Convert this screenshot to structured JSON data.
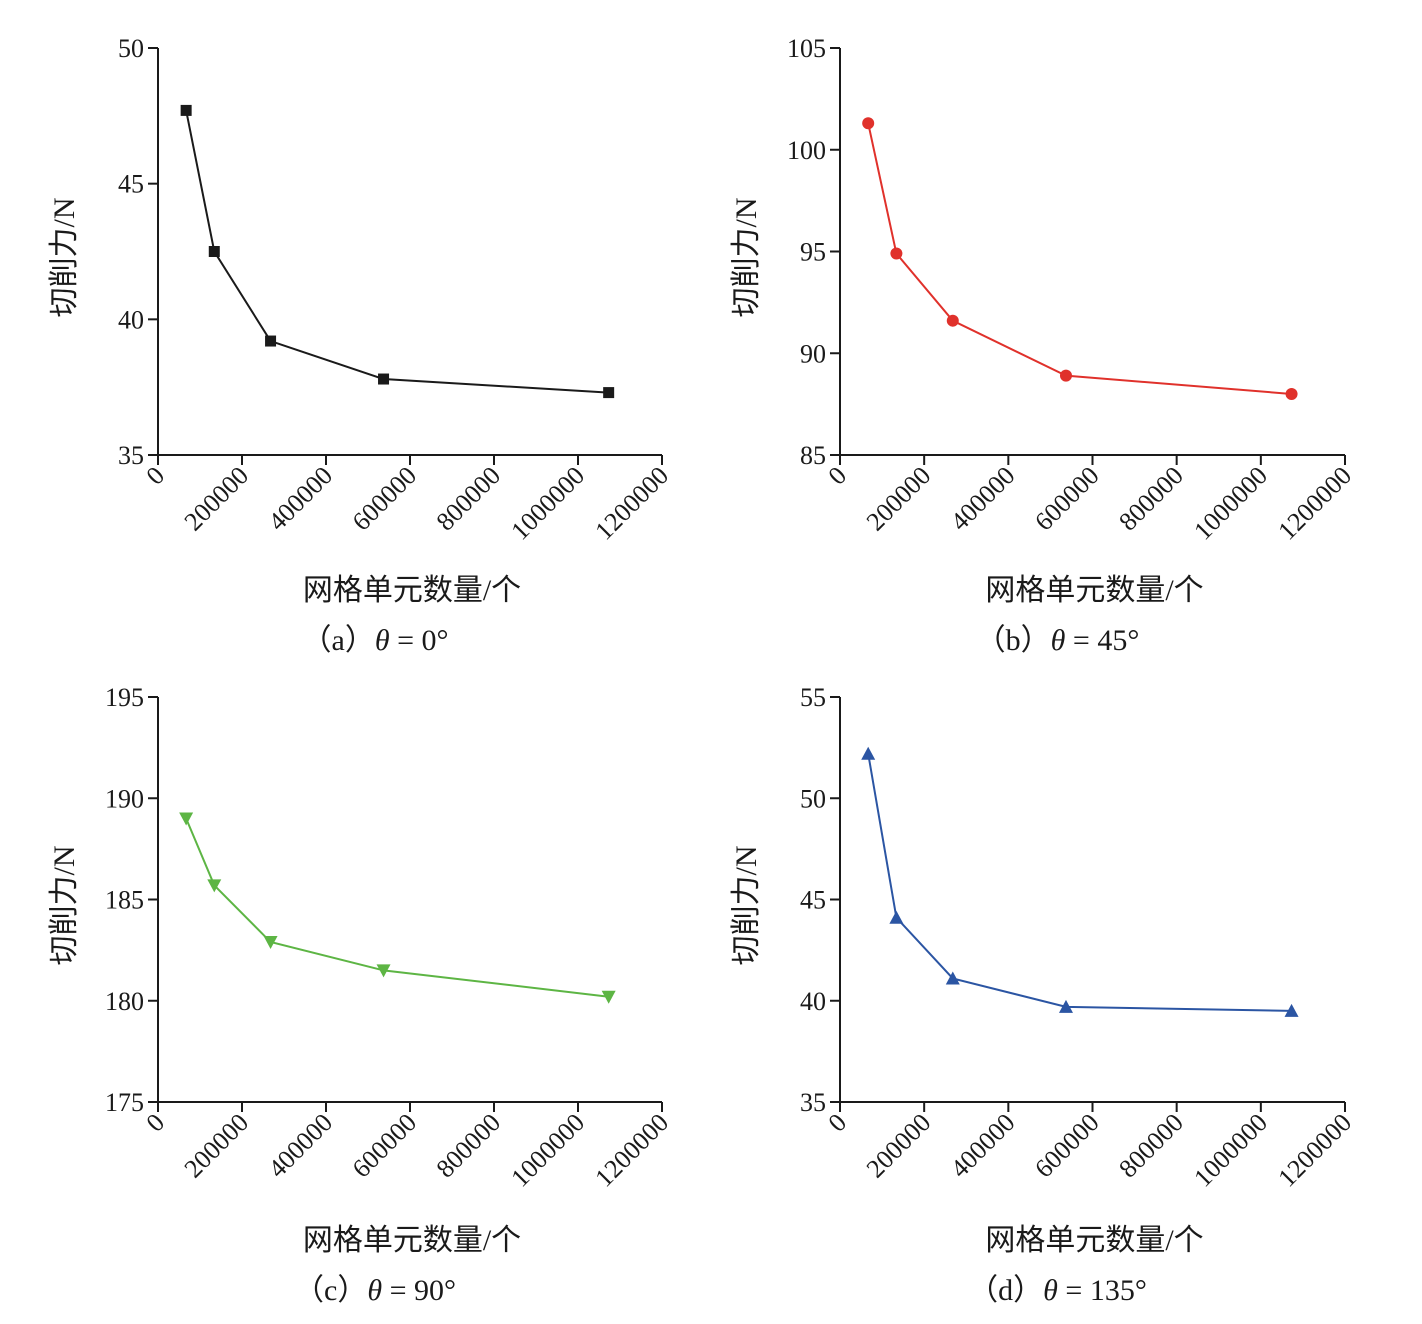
{
  "chart_data": [
    {
      "type": "line",
      "caption": {
        "prefix": "（a）",
        "theta": "θ",
        "eq": " = ",
        "value": "0°"
      },
      "xlabel": "网格单元数量/个",
      "ylabel": "切削力/N",
      "xlim": [
        0,
        1200000
      ],
      "ylim": [
        35,
        50
      ],
      "xticks": [
        "0",
        "200000",
        "400000",
        "600000",
        "800000",
        "1000000",
        "1200000"
      ],
      "xtick_values": [
        0,
        200000,
        400000,
        600000,
        800000,
        1000000,
        1200000
      ],
      "yticks": [
        "35",
        "40",
        "45",
        "50"
      ],
      "ytick_values": [
        35,
        40,
        45,
        50
      ],
      "marker": "square",
      "color": "#1a1a1a",
      "grid": false,
      "series": [
        {
          "x": [
            67000,
            134000,
            268000,
            537000,
            1073000
          ],
          "y": [
            47.7,
            42.5,
            39.2,
            37.8,
            37.3
          ]
        }
      ]
    },
    {
      "type": "line",
      "caption": {
        "prefix": "（b）",
        "theta": "θ",
        "eq": " = ",
        "value": "45°"
      },
      "xlabel": "网格单元数量/个",
      "ylabel": "切削力/N",
      "xlim": [
        0,
        1200000
      ],
      "ylim": [
        85,
        105
      ],
      "xticks": [
        "0",
        "200000",
        "400000",
        "600000",
        "800000",
        "1000000",
        "1200000"
      ],
      "xtick_values": [
        0,
        200000,
        400000,
        600000,
        800000,
        1000000,
        1200000
      ],
      "yticks": [
        "85",
        "90",
        "95",
        "100",
        "105"
      ],
      "ytick_values": [
        85,
        90,
        95,
        100,
        105
      ],
      "marker": "circle",
      "color": "#e0312b",
      "grid": false,
      "series": [
        {
          "x": [
            67000,
            134000,
            268000,
            537000,
            1073000
          ],
          "y": [
            101.3,
            94.9,
            91.6,
            88.9,
            88.0
          ]
        }
      ]
    },
    {
      "type": "line",
      "caption": {
        "prefix": "（c）",
        "theta": "θ",
        "eq": " = ",
        "value": "90°"
      },
      "xlabel": "网格单元数量/个",
      "ylabel": "切削力/N",
      "xlim": [
        0,
        1200000
      ],
      "ylim": [
        175,
        195
      ],
      "xticks": [
        "0",
        "200000",
        "400000",
        "600000",
        "800000",
        "1000000",
        "1200000"
      ],
      "xtick_values": [
        0,
        200000,
        400000,
        600000,
        800000,
        1000000,
        1200000
      ],
      "yticks": [
        "175",
        "180",
        "185",
        "190",
        "195"
      ],
      "ytick_values": [
        175,
        180,
        185,
        190,
        195
      ],
      "marker": "triangle-down",
      "color": "#5db544",
      "grid": false,
      "series": [
        {
          "x": [
            67000,
            134000,
            268000,
            537000,
            1073000
          ],
          "y": [
            189.0,
            185.7,
            182.9,
            181.5,
            180.2
          ]
        }
      ]
    },
    {
      "type": "line",
      "caption": {
        "prefix": "（d）",
        "theta": "θ",
        "eq": " = ",
        "value": "135°"
      },
      "xlabel": "网格单元数量/个",
      "ylabel": "切削力/N",
      "xlim": [
        0,
        1200000
      ],
      "ylim": [
        35,
        55
      ],
      "xticks": [
        "0",
        "200000",
        "400000",
        "600000",
        "800000",
        "1000000",
        "1200000"
      ],
      "xtick_values": [
        0,
        200000,
        400000,
        600000,
        800000,
        1000000,
        1200000
      ],
      "yticks": [
        "35",
        "40",
        "45",
        "50",
        "55"
      ],
      "ytick_values": [
        35,
        40,
        45,
        50,
        55
      ],
      "marker": "triangle-up",
      "color": "#2b55a3",
      "grid": false,
      "series": [
        {
          "x": [
            67000,
            134000,
            268000,
            537000,
            1073000
          ],
          "y": [
            52.2,
            44.1,
            41.1,
            39.7,
            39.5
          ]
        }
      ]
    }
  ]
}
